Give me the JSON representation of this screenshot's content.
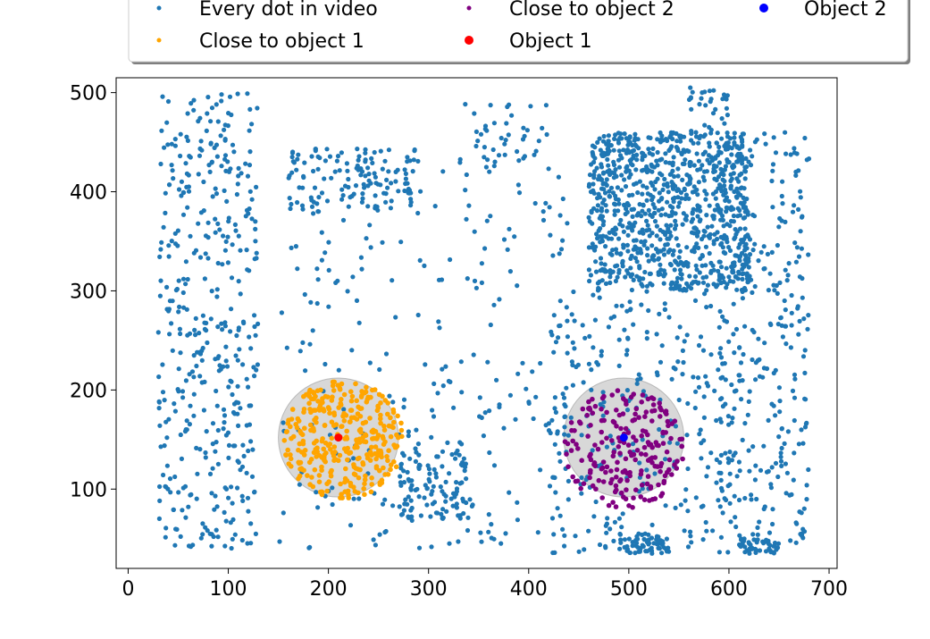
{
  "chart_data": {
    "type": "scatter",
    "title": "",
    "xlabel": "",
    "ylabel": "",
    "xlim": [
      -12,
      708
    ],
    "ylim": [
      20,
      515
    ],
    "xticks": [
      0,
      100,
      200,
      300,
      400,
      500,
      600,
      700
    ],
    "yticks": [
      100,
      200,
      300,
      400,
      500
    ],
    "grid": false,
    "legend": {
      "placement": "top, above plot",
      "columns": 3,
      "entries": [
        {
          "label": "Every dot in video",
          "color": "#1f77b4",
          "marker": "small-dot"
        },
        {
          "label": "Close to object 1",
          "color": "#ffa500",
          "marker": "small-dot"
        },
        {
          "label": "Close to object 2",
          "color": "#800080",
          "marker": "small-dot"
        },
        {
          "label": "Object 1",
          "color": "#ff0000",
          "marker": "dot"
        },
        {
          "label": "Object 2",
          "color": "#0000ff",
          "marker": "dot"
        }
      ]
    },
    "zones": [
      {
        "object": "Object 1",
        "center": [
          210,
          152
        ],
        "radius": 60,
        "fill": "#a9a9a9"
      },
      {
        "object": "Object 2",
        "center": [
          495,
          152
        ],
        "radius": 60,
        "fill": "#a9a9a9"
      }
    ],
    "series": [
      {
        "name": "Every dot in video",
        "color": "#1f77b4",
        "clusters": [
          {
            "x_range": [
              30,
              130
            ],
            "y_range": [
              40,
              500
            ],
            "count": 420
          },
          {
            "x_range": [
              160,
              290
            ],
            "y_range": [
              380,
              445
            ],
            "count": 120
          },
          {
            "x_range": [
              270,
              340
            ],
            "y_range": [
              70,
              140
            ],
            "count": 110
          },
          {
            "x_range": [
              150,
              440
            ],
            "y_range": [
              40,
              445
            ],
            "count": 260
          },
          {
            "x_range": [
              460,
              620
            ],
            "y_range": [
              300,
              460
            ],
            "count": 900
          },
          {
            "x_range": [
              590,
              680
            ],
            "y_range": [
              35,
              460
            ],
            "count": 320
          },
          {
            "x_range": [
              420,
              600
            ],
            "y_range": [
              35,
              300
            ],
            "count": 260
          },
          {
            "x_range": [
              330,
              420
            ],
            "y_range": [
              430,
              490
            ],
            "count": 40
          },
          {
            "x_range": [
              560,
              600
            ],
            "y_range": [
              460,
              505
            ],
            "count": 30
          },
          {
            "x_range": [
              490,
              540
            ],
            "y_range": [
              35,
              55
            ],
            "count": 60
          },
          {
            "x_range": [
              610,
              650
            ],
            "y_range": [
              35,
              50
            ],
            "count": 40
          }
        ]
      },
      {
        "name": "Close to object 1",
        "color": "#ffa500",
        "center": [
          215,
          150
        ],
        "radius": 60,
        "count": 340
      },
      {
        "name": "Close to object 2",
        "color": "#800080",
        "center": [
          495,
          140
        ],
        "radius": 60,
        "count": 210
      },
      {
        "name": "Object 1",
        "color": "#ff0000",
        "x": [
          210
        ],
        "y": [
          152
        ]
      },
      {
        "name": "Object 2",
        "color": "#0000ff",
        "x": [
          495
        ],
        "y": [
          152
        ]
      }
    ]
  }
}
